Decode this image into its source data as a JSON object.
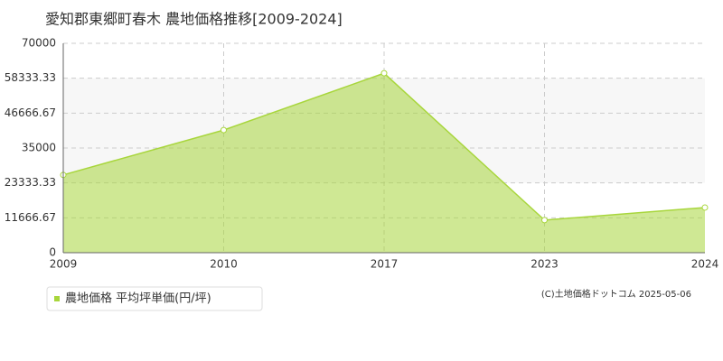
{
  "chart_data": {
    "type": "area",
    "title": "愛知郡東郷町春木 農地価格推移[2009-2024]",
    "categories": [
      "2009",
      "2010",
      "2017",
      "2023",
      "2024"
    ],
    "series": [
      {
        "name": "農地価格 平均坪単価(円/坪)",
        "color": "#a8d63c",
        "values": [
          26000,
          41000,
          60000,
          10900,
          15100
        ]
      }
    ],
    "ylim": [
      0,
      70000
    ],
    "yticks": [
      0,
      11666.67,
      23333.33,
      35000,
      46666.67,
      58333.33,
      70000
    ],
    "grid": true,
    "legend": "bottom-left",
    "copyright": "(C)土地価格ドットコム 2025-05-06"
  }
}
